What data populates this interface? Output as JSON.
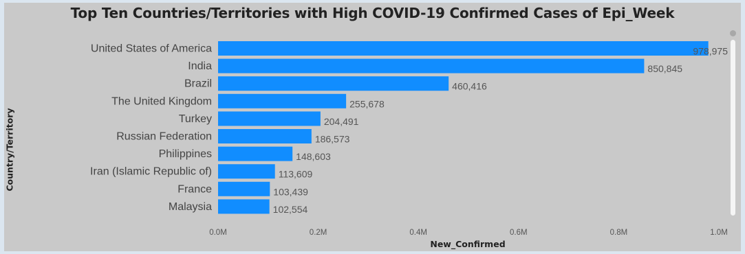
{
  "chart_data": {
    "type": "bar",
    "orientation": "horizontal",
    "title": "Top Ten Countries/Territories with High COVID-19 Confirmed Cases of Epi_Week",
    "xlabel": "New_Confirmed",
    "ylabel": "Country/Territory",
    "categories": [
      "United States of America",
      "India",
      "Brazil",
      "The United Kingdom",
      "Turkey",
      "Russian Federation",
      "Philippines",
      "Iran (Islamic Republic of)",
      "France",
      "Malaysia"
    ],
    "values": [
      978975,
      850845,
      460416,
      255678,
      204491,
      186573,
      148603,
      113609,
      103439,
      102554
    ],
    "value_labels": [
      "978,975",
      "850,845",
      "460,416",
      "255,678",
      "204,491",
      "186,573",
      "148,603",
      "113,609",
      "103,439",
      "102,554"
    ],
    "xlim": [
      0,
      1000000
    ],
    "x_ticks": [
      {
        "value": 0,
        "label": "0.0M"
      },
      {
        "value": 200000,
        "label": "0.2M"
      },
      {
        "value": 400000,
        "label": "0.4M"
      },
      {
        "value": 600000,
        "label": "0.6M"
      },
      {
        "value": 800000,
        "label": "0.8M"
      },
      {
        "value": 1000000,
        "label": "1.0M"
      }
    ],
    "grid": false,
    "legend": "none",
    "bar_color": "#118dff"
  }
}
